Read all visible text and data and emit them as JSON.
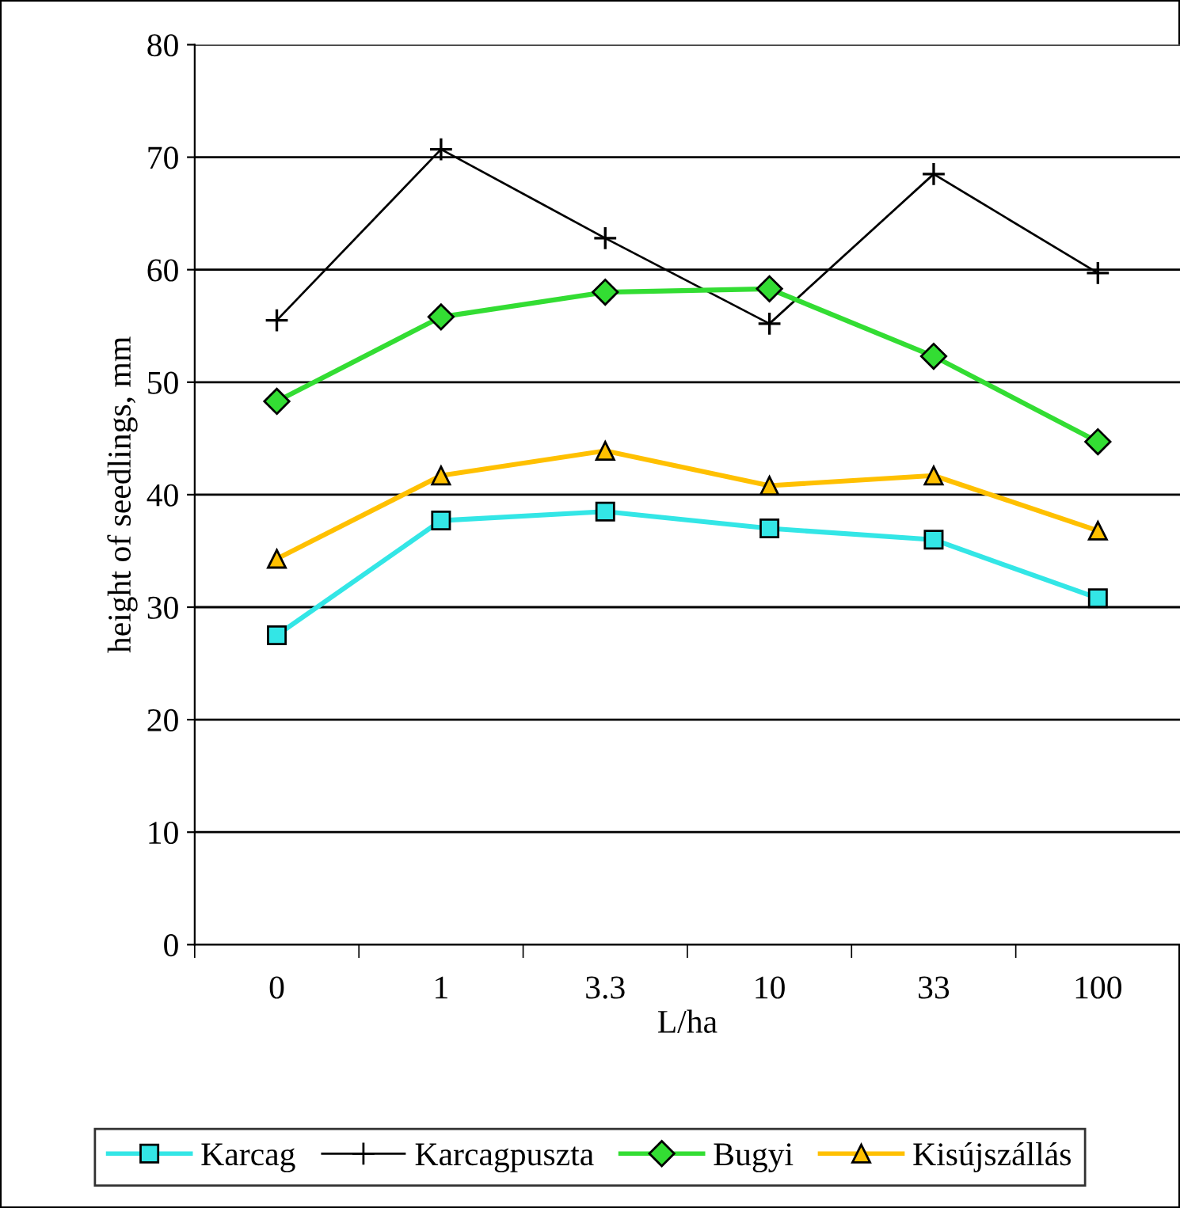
{
  "chart_data": {
    "type": "line",
    "xlabel": "L/ha",
    "ylabel": "height of seedlings, mm",
    "categories": [
      "0",
      "1",
      "3.3",
      "10",
      "33",
      "100"
    ],
    "series": [
      {
        "name": "Karcag",
        "color": "#33e6e6",
        "marker": "square",
        "values": [
          27.5,
          37.7,
          38.5,
          37.0,
          36.0,
          30.8
        ]
      },
      {
        "name": "Karcagpuszta",
        "color": "#000000",
        "marker": "cross",
        "values": [
          55.5,
          70.7,
          62.8,
          55.2,
          68.5,
          59.7
        ]
      },
      {
        "name": "Bugyi",
        "color": "#33dd33",
        "marker": "diamond",
        "values": [
          48.3,
          55.8,
          58.0,
          58.3,
          52.3,
          44.7
        ]
      },
      {
        "name": "Kisújszállás",
        "color": "#ffc000",
        "marker": "triangle",
        "values": [
          34.3,
          41.7,
          43.9,
          40.8,
          41.7,
          36.8
        ]
      }
    ],
    "ylim": [
      0,
      80
    ],
    "yticks": [
      0,
      10,
      20,
      30,
      40,
      50,
      60,
      70,
      80
    ],
    "grid": "y",
    "legend": "bottom",
    "line_style": "solid"
  }
}
